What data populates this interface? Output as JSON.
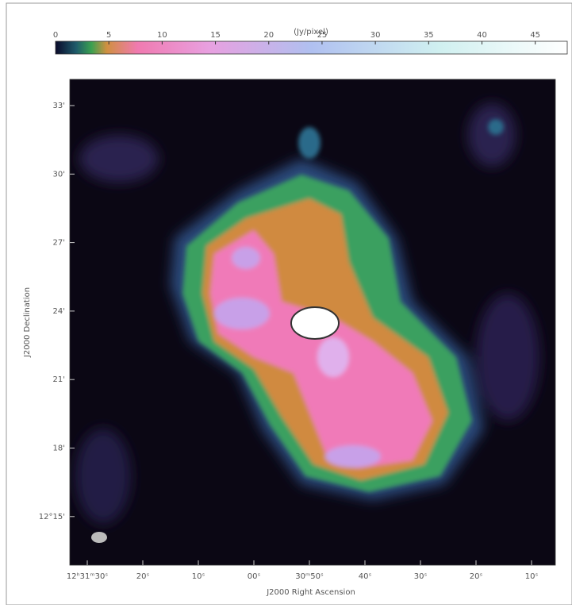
{
  "figure": {
    "colorbar": {
      "label": "(Jy/pixel)",
      "range": [
        0,
        48
      ],
      "ticks": [
        0,
        5,
        10,
        15,
        20,
        25,
        30,
        35,
        40,
        45
      ]
    },
    "y_axis": {
      "label": "J2000 Declination",
      "ticks": [
        "33'",
        "30'",
        "27'",
        "24'",
        "21'",
        "18'",
        "12°15'"
      ]
    },
    "x_axis": {
      "label": "J2000 Right Ascension",
      "ticks": [
        "12ʰ31ᵐ30ˢ",
        "20ˢ",
        "10ˢ",
        "00ˢ",
        "30ᵐ50ˢ",
        "40ˢ",
        "30ˢ",
        "20ˢ",
        "10ˢ"
      ]
    }
  }
}
